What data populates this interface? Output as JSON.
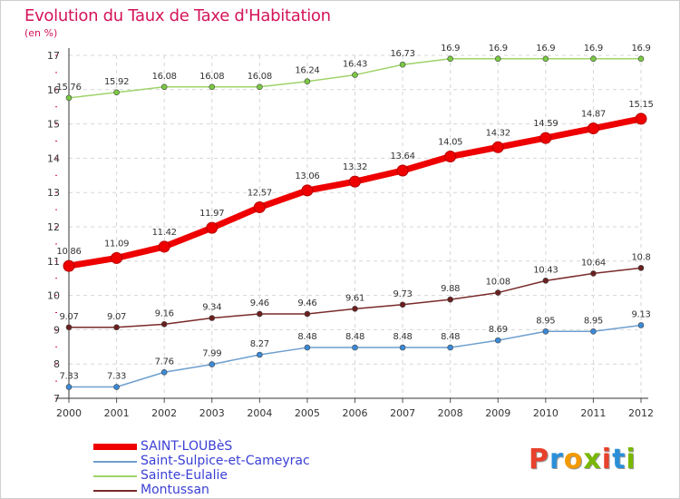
{
  "header": {
    "title": "Evolution du Taux de Taxe d'Habitation",
    "unit": "(en %)"
  },
  "brand": {
    "name": "Proxiti",
    "colors": [
      "#e8412c",
      "#2a8fd9",
      "#f29a00",
      "#7ab800",
      "#e8412c",
      "#2a8fd9",
      "#7ab800"
    ]
  },
  "chart_data": {
    "type": "line",
    "title": "Evolution du Taux de Taxe d'Habitation",
    "ylabel": "(en %)",
    "xlabel": "",
    "x": [
      "2000",
      "2001",
      "2002",
      "2003",
      "2004",
      "2005",
      "2006",
      "2007",
      "2008",
      "2009",
      "2010",
      "2011",
      "2012"
    ],
    "ylim": [
      7,
      17
    ],
    "yticks": [
      "7",
      "8",
      "9",
      "10",
      "11",
      "12",
      "13",
      "14",
      "15",
      "16",
      "17"
    ],
    "grid": "horizontal dashed",
    "legend_position": "bottom-left",
    "series": [
      {
        "name": "SAINT-LOUBèS",
        "color": "#ee0000",
        "marker_color": "#ee0000",
        "weight": "bold",
        "values": [
          10.86,
          11.09,
          11.42,
          11.97,
          12.57,
          13.06,
          13.32,
          13.64,
          14.05,
          14.32,
          14.59,
          14.87,
          15.15
        ],
        "labels": [
          "10.86",
          "11.09",
          "11.42",
          "11.97",
          "12.57",
          "13.06",
          "13.32",
          "13.64",
          "14.05",
          "14.32",
          "14.59",
          "14.87",
          "15.15"
        ]
      },
      {
        "name": "Saint-Sulpice-et-Cameyrac",
        "color": "#6f9fcf",
        "marker_color": "#3b8ad8",
        "weight": "normal",
        "values": [
          7.33,
          7.33,
          7.76,
          7.99,
          8.27,
          8.48,
          8.48,
          8.48,
          8.48,
          8.69,
          8.95,
          8.95,
          9.13
        ],
        "labels": [
          "7.33",
          "7.33",
          "7.76",
          "7.99",
          "8.27",
          "8.48",
          "8.48",
          "8.48",
          "8.48",
          "8.69",
          "8.95",
          "8.95",
          "9.13"
        ]
      },
      {
        "name": "Sainte-Eulalie",
        "color": "#9fd36a",
        "marker_color": "#7ac943",
        "weight": "normal",
        "values": [
          15.76,
          15.92,
          16.08,
          16.08,
          16.08,
          16.24,
          16.43,
          16.73,
          16.9,
          16.9,
          16.9,
          16.9,
          16.9
        ],
        "labels": [
          "15.76",
          "15.92",
          "16.08",
          "16.08",
          "16.08",
          "16.24",
          "16.43",
          "16.73",
          "16.9",
          "16.9",
          "16.9",
          "16.9",
          "16.9"
        ]
      },
      {
        "name": "Montussan",
        "color": "#7a2a2a",
        "marker_color": "#6b1f1f",
        "weight": "normal",
        "values": [
          9.07,
          9.07,
          9.16,
          9.34,
          9.46,
          9.46,
          9.61,
          9.73,
          9.88,
          10.08,
          10.43,
          10.64,
          10.8
        ],
        "labels": [
          "9.07",
          "9.07",
          "9.16",
          "9.34",
          "9.46",
          "9.46",
          "9.61",
          "9.73",
          "9.88",
          "10.08",
          "10.43",
          "10.64",
          "10.8"
        ]
      }
    ]
  }
}
